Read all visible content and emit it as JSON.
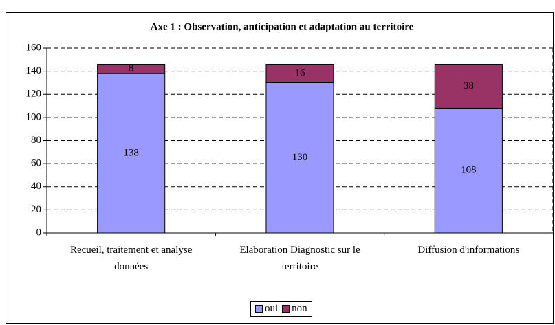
{
  "chart_data": {
    "type": "stacked_bar",
    "title": "Axe 1 : Observation, anticipation et adaptation au territoire",
    "categories": [
      "Recueil, traitement et analyse données",
      "Elaboration Diagnostic sur le territoire",
      "Diffusion d'informations"
    ],
    "series": [
      {
        "name": "oui",
        "color": "#9999ff",
        "values": [
          138,
          130,
          108
        ]
      },
      {
        "name": "non",
        "color": "#993366",
        "values": [
          8,
          16,
          38
        ]
      }
    ],
    "ylim": [
      0,
      160
    ],
    "yticks": [
      0,
      20,
      40,
      60,
      80,
      100,
      120,
      140,
      160
    ],
    "grid": true,
    "legend": "bottom"
  }
}
